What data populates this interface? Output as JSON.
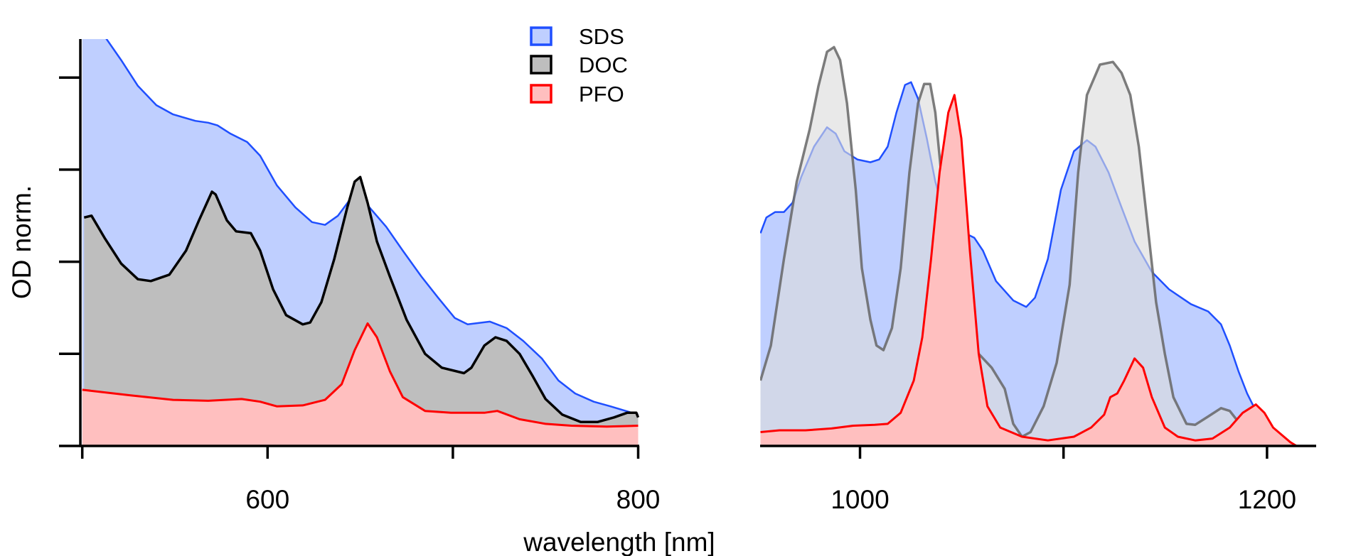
{
  "chart_data": [
    {
      "type": "area",
      "panel": "left",
      "xlabel": "wavelength [nm]",
      "ylabel": "OD norm.",
      "xlim": [
        499,
        801
      ],
      "ylim": [
        0,
        4.42
      ],
      "x_ticks": [
        500,
        600,
        700,
        800
      ],
      "x_tick_labels": [
        "",
        "600",
        "",
        "800"
      ],
      "y_ticks": [
        0,
        1,
        2,
        3,
        4
      ],
      "grid": false,
      "series": [
        {
          "name": "SDS",
          "x": [
            500,
            513,
            521,
            530,
            540,
            549,
            561,
            568,
            573,
            580,
            589,
            596,
            605,
            615,
            624,
            631,
            638,
            645,
            649,
            655,
            664,
            673,
            683,
            692,
            701,
            708,
            720,
            729,
            738,
            748,
            757,
            766,
            776,
            785,
            800
          ],
          "y": [
            4.9,
            4.42,
            4.19,
            3.91,
            3.7,
            3.6,
            3.53,
            3.51,
            3.48,
            3.39,
            3.3,
            3.15,
            2.83,
            2.59,
            2.43,
            2.4,
            2.5,
            2.69,
            2.76,
            2.59,
            2.38,
            2.12,
            1.84,
            1.61,
            1.39,
            1.32,
            1.35,
            1.28,
            1.14,
            0.95,
            0.71,
            0.57,
            0.48,
            0.43,
            0.34
          ]
        },
        {
          "name": "DOC",
          "x": [
            501,
            505,
            512,
            521,
            530,
            537,
            547,
            556,
            563,
            570,
            572,
            578,
            583,
            591,
            596,
            603,
            610,
            619,
            623,
            629,
            636,
            643,
            647,
            650,
            654,
            659,
            666,
            675,
            685,
            694,
            706,
            710,
            717,
            723,
            729,
            736,
            743,
            750,
            759,
            769,
            778,
            787,
            794,
            799,
            800
          ],
          "y": [
            2.48,
            2.5,
            2.26,
            1.98,
            1.81,
            1.79,
            1.86,
            2.12,
            2.45,
            2.76,
            2.73,
            2.45,
            2.33,
            2.31,
            2.12,
            1.7,
            1.42,
            1.32,
            1.34,
            1.56,
            2.03,
            2.59,
            2.87,
            2.92,
            2.64,
            2.22,
            1.84,
            1.37,
            1.0,
            0.85,
            0.79,
            0.85,
            1.09,
            1.18,
            1.14,
            1.0,
            0.76,
            0.51,
            0.34,
            0.26,
            0.26,
            0.31,
            0.36,
            0.36,
            0.31
          ]
        },
        {
          "name": "PFO",
          "x": [
            500,
            526,
            549,
            568,
            586,
            596,
            605,
            619,
            631,
            640,
            647,
            654,
            659,
            666,
            673,
            685,
            699,
            717,
            724,
            736,
            750,
            764,
            783,
            800
          ],
          "y": [
            0.61,
            0.55,
            0.5,
            0.49,
            0.51,
            0.48,
            0.43,
            0.44,
            0.5,
            0.67,
            1.04,
            1.33,
            1.18,
            0.81,
            0.53,
            0.38,
            0.36,
            0.36,
            0.38,
            0.29,
            0.24,
            0.22,
            0.21,
            0.22
          ]
        }
      ]
    },
    {
      "type": "area",
      "panel": "right",
      "xlim": [
        951,
        1222
      ],
      "ylim": [
        0,
        4.42
      ],
      "x_ticks": [
        1000,
        1100,
        1200
      ],
      "x_tick_labels": [
        "1000",
        "",
        "1200"
      ],
      "grid": false,
      "series": [
        {
          "name": "SDS",
          "x": [
            951.1,
            954.0,
            958.3,
            962.6,
            966.8,
            971.1,
            977.4,
            983.8,
            988.1,
            992.3,
            998.7,
            1005.1,
            1009.4,
            1013.6,
            1017.9,
            1022.1,
            1025.1,
            1028.5,
            1032.8,
            1037.0,
            1041.3,
            1049.8,
            1056.2,
            1060.4,
            1066.8,
            1075.3,
            1081.7,
            1086.0,
            1092.3,
            1098.7,
            1105.1,
            1111.5,
            1115.7,
            1122.1,
            1128.5,
            1134.9,
            1143.4,
            1151.9,
            1162.6,
            1171.1,
            1177.4,
            1181.7,
            1186.0,
            1190.2,
            1194.5
          ],
          "y": [
            2.31,
            2.48,
            2.54,
            2.54,
            2.64,
            2.92,
            3.25,
            3.46,
            3.39,
            3.2,
            3.11,
            3.08,
            3.11,
            3.25,
            3.62,
            3.92,
            3.95,
            3.77,
            3.34,
            2.87,
            2.54,
            2.33,
            2.26,
            2.12,
            1.79,
            1.58,
            1.51,
            1.61,
            2.03,
            2.78,
            3.2,
            3.32,
            3.25,
            2.97,
            2.59,
            2.22,
            1.89,
            1.7,
            1.54,
            1.46,
            1.32,
            1.09,
            0.81,
            0.57,
            0.38
          ]
        },
        {
          "name": "DOC",
          "x": [
            951.1,
            956.2,
            962.6,
            968.9,
            975.3,
            979.6,
            983.8,
            987.2,
            990.2,
            993.6,
            997.9,
            1000.9,
            1005.1,
            1008.1,
            1011.5,
            1015.7,
            1020.0,
            1024.3,
            1028.5,
            1031.5,
            1034.5,
            1037.0,
            1041.3,
            1049.8,
            1058.3,
            1064.7,
            1071.1,
            1075.3,
            1079.6,
            1083.8,
            1090.2,
            1096.6,
            1103.0,
            1107.2,
            1111.5,
            1117.9,
            1124.3,
            1128.5,
            1132.8,
            1137.0,
            1141.3,
            1145.5,
            1149.8,
            1154.0,
            1160.4,
            1164.7,
            1171.1,
            1177.4,
            1181.7,
            1188.1,
            1194.5
          ],
          "y": [
            0.71,
            1.09,
            2.03,
            2.87,
            3.44,
            3.91,
            4.28,
            4.33,
            4.19,
            3.72,
            2.78,
            1.93,
            1.37,
            1.09,
            1.04,
            1.28,
            1.93,
            2.97,
            3.72,
            3.93,
            3.93,
            3.62,
            2.64,
            1.75,
            1.0,
            0.85,
            0.62,
            0.24,
            0.1,
            0.15,
            0.43,
            0.9,
            1.75,
            2.97,
            3.81,
            4.14,
            4.17,
            4.05,
            3.81,
            3.25,
            2.4,
            1.56,
            1.0,
            0.53,
            0.24,
            0.23,
            0.32,
            0.41,
            0.38,
            0.2,
            0.01
          ]
        },
        {
          "name": "PFO",
          "x": [
            951.1,
            960.4,
            973.2,
            986.0,
            996.6,
            1007.2,
            1013.6,
            1020.0,
            1026.4,
            1030.6,
            1034.9,
            1039.1,
            1043.4,
            1046.4,
            1049.8,
            1054.0,
            1058.3,
            1062.6,
            1068.9,
            1079.6,
            1092.3,
            1105.1,
            1113.6,
            1120.0,
            1123.0,
            1126.4,
            1129.8,
            1134.9,
            1139.1,
            1143.4,
            1149.8,
            1156.2,
            1164.7,
            1173.2,
            1181.7,
            1188.1,
            1194.5,
            1198.7,
            1203.0,
            1207.2,
            1211.5,
            1214.5
          ],
          "y": [
            0.15,
            0.17,
            0.17,
            0.19,
            0.22,
            0.23,
            0.24,
            0.36,
            0.71,
            1.18,
            2.03,
            2.97,
            3.62,
            3.81,
            3.34,
            2.12,
            1.0,
            0.43,
            0.2,
            0.1,
            0.06,
            0.1,
            0.2,
            0.34,
            0.53,
            0.57,
            0.71,
            0.95,
            0.85,
            0.53,
            0.2,
            0.1,
            0.06,
            0.08,
            0.2,
            0.36,
            0.45,
            0.36,
            0.2,
            0.12,
            0.04,
            0.0
          ]
        }
      ]
    }
  ],
  "legend": {
    "position": "top-center",
    "items": [
      {
        "label": "SDS",
        "stroke": "#1f4fff",
        "fill": "#bfcfff"
      },
      {
        "label": "DOC",
        "stroke": "#000000",
        "fill": "#bebebe"
      },
      {
        "label": "PFO",
        "stroke": "#ff0000",
        "fill": "#ffbfbf"
      }
    ]
  },
  "colors": {
    "sds_stroke": "#1f4fff",
    "sds_fill": "#bfcfff",
    "doc_stroke_left": "#000000",
    "doc_fill_left": "#bebebe",
    "doc_stroke_right": "#666666",
    "doc_fill_right": "#dcdcdc",
    "pfo_stroke": "#ff0000",
    "pfo_fill": "#ffbfbf"
  }
}
